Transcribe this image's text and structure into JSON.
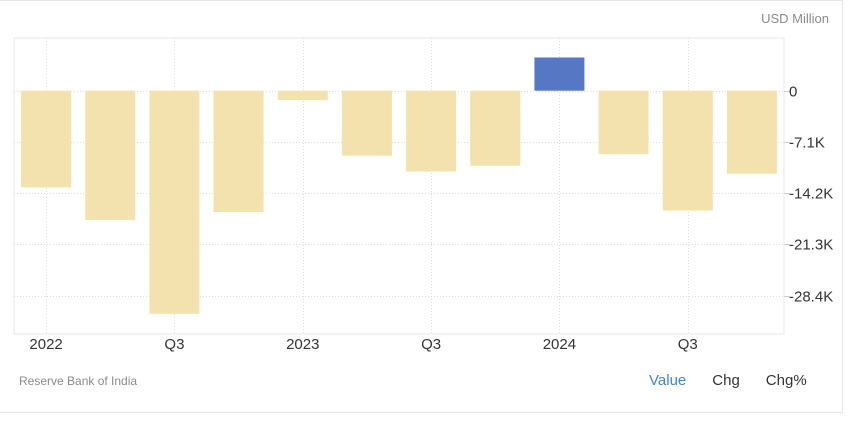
{
  "header": {
    "unit": "USD Million"
  },
  "footer": {
    "source": "Reserve Bank of India",
    "tabs": [
      {
        "label": "Value",
        "active": true
      },
      {
        "label": "Chg",
        "active": false
      },
      {
        "label": "Chg%",
        "active": false
      }
    ]
  },
  "colors": {
    "negative_bar": "#f4e2ae",
    "positive_bar": "#5677c4",
    "active_tab": "#3d86d1",
    "grid": "#dcdcdc"
  },
  "chart_data": {
    "type": "bar",
    "title": "",
    "xlabel": "",
    "ylabel": "USD Million",
    "categories": [
      "2022 Q1",
      "2022 Q2",
      "2022 Q3",
      "2022 Q4",
      "2023 Q1",
      "2023 Q2",
      "2023 Q3",
      "2023 Q4",
      "2024 Q1",
      "2024 Q2",
      "2024 Q3",
      "2024 Q4"
    ],
    "x_tick_labels": [
      "2022",
      "",
      "Q3",
      "",
      "2023",
      "",
      "Q3",
      "",
      "2024",
      "",
      "Q3",
      ""
    ],
    "values": [
      -13400,
      -17900,
      -30900,
      -16800,
      -1300,
      -9000,
      -11200,
      -10400,
      4600,
      -8800,
      -16600,
      -11500
    ],
    "y_ticks": [
      0,
      -7100,
      -14200,
      -21300,
      -28400
    ],
    "y_tick_labels": [
      "0",
      "-7.1K",
      "-14.2K",
      "-21.3K",
      "-28.4K"
    ],
    "ylim": [
      -33700,
      7300
    ],
    "grid": true,
    "y_axis_position": "right"
  }
}
